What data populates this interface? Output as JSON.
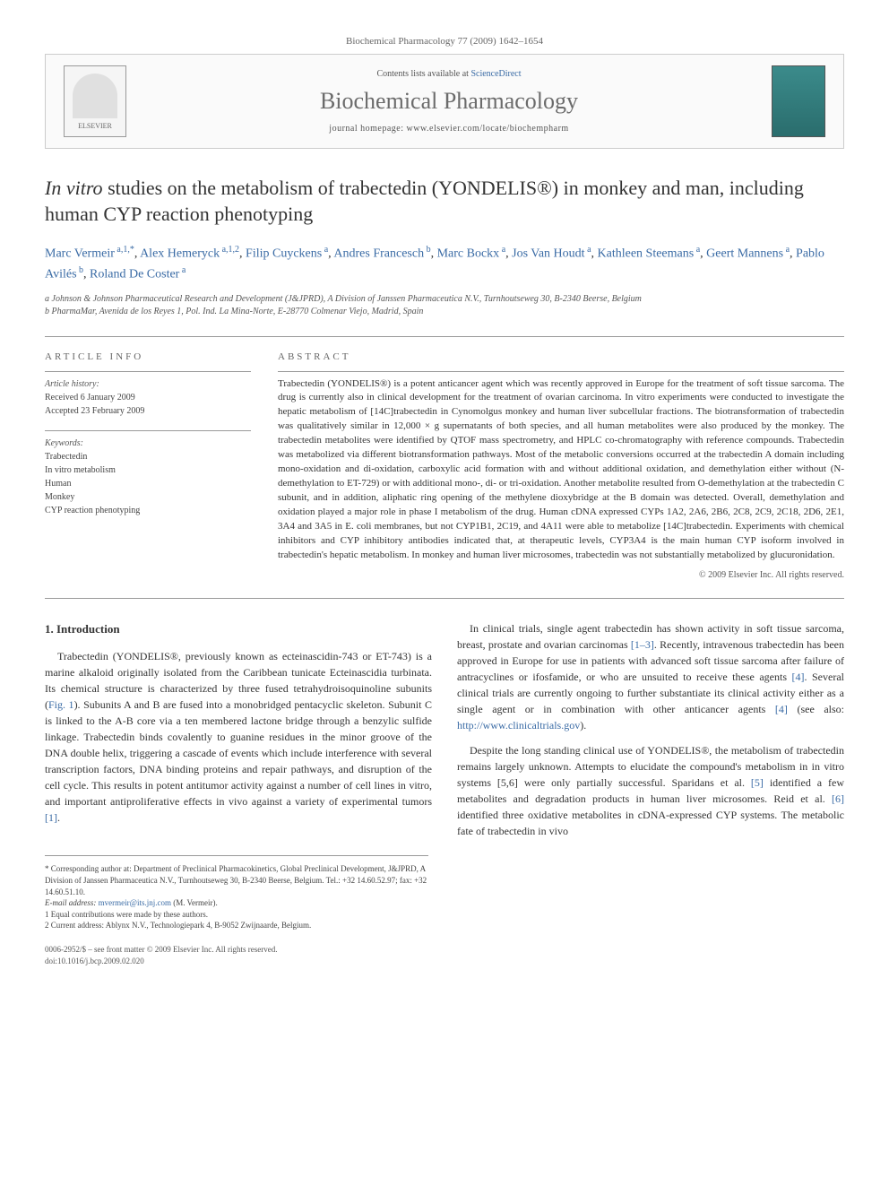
{
  "header": {
    "citation": "Biochemical Pharmacology 77 (2009) 1642–1654"
  },
  "journal_box": {
    "elsevier_label": "ELSEVIER",
    "contents_prefix": "Contents lists available at ",
    "contents_link": "ScienceDirect",
    "journal_title": "Biochemical Pharmacology",
    "homepage": "journal homepage: www.elsevier.com/locate/biochempharm"
  },
  "title_parts": {
    "prefix_italic": "In vitro",
    "rest": " studies on the metabolism of trabectedin (YONDELIS®) in monkey and man, including human CYP reaction phenotyping"
  },
  "authors": [
    {
      "name": "Marc Vermeir",
      "sup": "a,1,*"
    },
    {
      "name": "Alex Hemeryck",
      "sup": "a,1,2"
    },
    {
      "name": "Filip Cuyckens",
      "sup": "a"
    },
    {
      "name": "Andres Francesch",
      "sup": "b"
    },
    {
      "name": "Marc Bockx",
      "sup": "a"
    },
    {
      "name": "Jos Van Houdt",
      "sup": "a"
    },
    {
      "name": "Kathleen Steemans",
      "sup": "a"
    },
    {
      "name": "Geert Mannens",
      "sup": "a"
    },
    {
      "name": "Pablo Avilés",
      "sup": "b"
    },
    {
      "name": "Roland De Coster",
      "sup": "a"
    }
  ],
  "affiliations": [
    "a Johnson & Johnson Pharmaceutical Research and Development (J&JPRD), A Division of Janssen Pharmaceutica N.V., Turnhoutseweg 30, B-2340 Beerse, Belgium",
    "b PharmaMar, Avenida de los Reyes 1, Pol. Ind. La Mina-Norte, E-28770 Colmenar Viejo, Madrid, Spain"
  ],
  "article_info": {
    "heading": "ARTICLE INFO",
    "history_label": "Article history:",
    "received": "Received 6 January 2009",
    "accepted": "Accepted 23 February 2009",
    "keywords_label": "Keywords:",
    "keywords": [
      "Trabectedin",
      "In vitro metabolism",
      "Human",
      "Monkey",
      "CYP reaction phenotyping"
    ]
  },
  "abstract": {
    "heading": "ABSTRACT",
    "text": "Trabectedin (YONDELIS®) is a potent anticancer agent which was recently approved in Europe for the treatment of soft tissue sarcoma. The drug is currently also in clinical development for the treatment of ovarian carcinoma. In vitro experiments were conducted to investigate the hepatic metabolism of [14C]trabectedin in Cynomolgus monkey and human liver subcellular fractions. The biotransformation of trabectedin was qualitatively similar in 12,000 × g supernatants of both species, and all human metabolites were also produced by the monkey. The trabectedin metabolites were identified by QTOF mass spectrometry, and HPLC co-chromatography with reference compounds. Trabectedin was metabolized via different biotransformation pathways. Most of the metabolic conversions occurred at the trabectedin A domain including mono-oxidation and di-oxidation, carboxylic acid formation with and without additional oxidation, and demethylation either without (N-demethylation to ET-729) or with additional mono-, di- or tri-oxidation. Another metabolite resulted from O-demethylation at the trabectedin C subunit, and in addition, aliphatic ring opening of the methylene dioxybridge at the B domain was detected. Overall, demethylation and oxidation played a major role in phase I metabolism of the drug. Human cDNA expressed CYPs 1A2, 2A6, 2B6, 2C8, 2C9, 2C18, 2D6, 2E1, 3A4 and 3A5 in E. coli membranes, but not CYP1B1, 2C19, and 4A11 were able to metabolize [14C]trabectedin. Experiments with chemical inhibitors and CYP inhibitory antibodies indicated that, at therapeutic levels, CYP3A4 is the main human CYP isoform involved in trabectedin's hepatic metabolism. In monkey and human liver microsomes, trabectedin was not substantially metabolized by glucuronidation.",
    "copyright": "© 2009 Elsevier Inc. All rights reserved."
  },
  "body": {
    "section_heading": "1. Introduction",
    "paragraphs": [
      "Trabectedin (YONDELIS®, previously known as ecteinascidin-743 or ET-743) is a marine alkaloid originally isolated from the Caribbean tunicate Ecteinascidia turbinata. Its chemical structure is characterized by three fused tetrahydroisoquinoline subunits (Fig. 1). Subunits A and B are fused into a monobridged pentacyclic skeleton. Subunit C is linked to the A-B core via a ten membered lactone bridge through a benzylic sulfide linkage. Trabectedin binds covalently to guanine residues in the minor groove of the DNA double helix, triggering a cascade of events which include interference with several transcription factors, DNA binding proteins and repair pathways, and disruption of the cell cycle. This results in potent antitumor activity against a number of cell lines in vitro, and important antiproliferative effects in vivo against a variety of experimental tumors [1].",
      "In clinical trials, single agent trabectedin has shown activity in soft tissue sarcoma, breast, prostate and ovarian carcinomas [1–3]. Recently, intravenous trabectedin has been approved in Europe for use in patients with advanced soft tissue sarcoma after failure of antracyclines or ifosfamide, or who are unsuited to receive these agents [4]. Several clinical trials are currently ongoing to further substantiate its clinical activity either as a single agent or in combination with other anticancer agents [4] (see also: http://www.clinicaltrials.gov).",
      "Despite the long standing clinical use of YONDELIS®, the metabolism of trabectedin remains largely unknown. Attempts to elucidate the compound's metabolism in in vitro systems [5,6] were only partially successful. Sparidans et al. [5] identified a few metabolites and degradation products in human liver microsomes. Reid et al. [6] identified three oxidative metabolites in cDNA-expressed CYP systems. The metabolic fate of trabectedin in vivo"
    ]
  },
  "footnotes": {
    "corresponding": "* Corresponding author at: Department of Preclinical Pharmacokinetics, Global Preclinical Development, J&JPRD, A Division of Janssen Pharmaceutica N.V., Turnhoutseweg 30, B-2340 Beerse, Belgium. Tel.: +32 14.60.52.97; fax: +32 14.60.51.10.",
    "email_label": "E-mail address:",
    "email": "mvermeir@its.jnj.com",
    "email_who": "(M. Vermeir).",
    "note1": "1 Equal contributions were made by these authors.",
    "note2": "2 Current address: Ablynx N.V., Technologiepark 4, B-9052 Zwijnaarde, Belgium."
  },
  "footer": {
    "line1": "0006-2952/$ – see front matter © 2009 Elsevier Inc. All rights reserved.",
    "line2": "doi:10.1016/j.bcp.2009.02.020"
  },
  "colors": {
    "link": "#3a6ba5",
    "text": "#333333",
    "muted": "#666666"
  }
}
